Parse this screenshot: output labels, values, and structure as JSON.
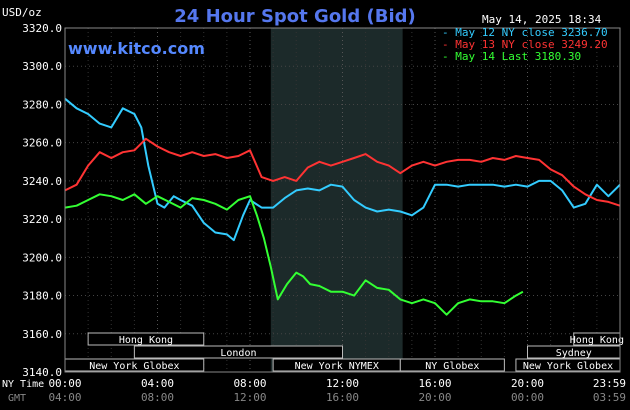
{
  "header": {
    "unit_label": "USD/oz",
    "title": "24 Hour Spot Gold (Bid)",
    "timestamp": "May 14, 2025 18:34",
    "website": "www.kitco.com"
  },
  "legend": [
    {
      "text": "May 12 NY close 3236.70",
      "color": "#33ccff"
    },
    {
      "text": "May 13 NY close 3249.20",
      "color": "#ff3333"
    },
    {
      "text": "May 14 Last 3180.30",
      "color": "#33ff33"
    }
  ],
  "x_axis": {
    "row1_label": "NY Time",
    "row2_label": "GMT",
    "ny_ticks": [
      "00:00",
      "04:00",
      "08:00",
      "12:00",
      "16:00",
      "20:00",
      "23:59"
    ],
    "gmt_ticks": [
      "04:00",
      "08:00",
      "12:00",
      "16:00",
      "20:00",
      "00:00",
      "03:59"
    ]
  },
  "markets": [
    {
      "name": "Hong Kong",
      "start": 1.0,
      "end": 6.0,
      "row": 0
    },
    {
      "name": "Hong Kong",
      "start": 22.0,
      "end": 26.0,
      "row": 0
    },
    {
      "name": "London",
      "start": 3.0,
      "end": 12.0,
      "row": 1
    },
    {
      "name": "Sydney",
      "start": 20.0,
      "end": 26.0,
      "row": 1
    },
    {
      "name": "New York Globex",
      "start": 0.0,
      "end": 6.0,
      "row": 2
    },
    {
      "name": "New York NYMEX",
      "start": 9.0,
      "end": 14.5,
      "row": 2
    },
    {
      "name": "NY Globex",
      "start": 14.5,
      "end": 19.0,
      "row": 2
    },
    {
      "name": "New York Globex",
      "start": 19.5,
      "end": 26.0,
      "row": 2
    }
  ],
  "chart_data": {
    "type": "line",
    "title": "24 Hour Spot Gold (Bid)",
    "ylabel": "USD/oz",
    "xlabel": "NY Time",
    "ylim": [
      3140,
      3320
    ],
    "xlim": [
      0,
      24
    ],
    "y_ticks": [
      3140,
      3160,
      3180,
      3200,
      3220,
      3240,
      3260,
      3280,
      3300,
      3320
    ],
    "grid": true,
    "highlight_range": [
      8.9,
      14.6
    ],
    "legend_position": "top-right",
    "series": [
      {
        "name": "May 12 NY close 3236.70",
        "color": "#33ccff",
        "x": [
          0,
          0.5,
          1.0,
          1.5,
          2.0,
          2.5,
          3.0,
          3.3,
          3.6,
          4.0,
          4.3,
          4.7,
          5.0,
          5.5,
          6.0,
          6.5,
          7.0,
          7.3,
          7.7,
          8.0,
          8.5,
          9.0,
          9.5,
          10.0,
          10.5,
          11.0,
          11.5,
          12.0,
          12.5,
          13.0,
          13.5,
          14.0,
          14.5,
          15.0,
          15.5,
          16.0,
          16.5,
          17.0,
          17.5,
          18.0,
          18.5,
          19.0,
          19.5,
          20.0,
          20.5,
          21.0,
          21.5,
          22.0,
          22.5,
          23.0,
          23.5,
          24.0
        ],
        "y": [
          3283,
          3278,
          3275,
          3270,
          3268,
          3278,
          3275,
          3268,
          3248,
          3228,
          3226,
          3232,
          3230,
          3227,
          3218,
          3213,
          3212,
          3209,
          3222,
          3230,
          3226,
          3226,
          3231,
          3235,
          3236,
          3235,
          3238,
          3237,
          3230,
          3226,
          3224,
          3225,
          3224,
          3222,
          3226,
          3238,
          3238,
          3237,
          3238,
          3238,
          3238,
          3237,
          3238,
          3237,
          3240,
          3240,
          3235,
          3226,
          3228,
          3238,
          3232,
          3238
        ]
      },
      {
        "name": "May 13 NY close 3249.20",
        "color": "#ff3333",
        "x": [
          0,
          0.5,
          1.0,
          1.5,
          2.0,
          2.5,
          3.0,
          3.5,
          4.0,
          4.5,
          5.0,
          5.5,
          6.0,
          6.5,
          7.0,
          7.5,
          8.0,
          8.5,
          9.0,
          9.5,
          10.0,
          10.5,
          11.0,
          11.5,
          12.0,
          12.5,
          13.0,
          13.5,
          14.0,
          14.5,
          15.0,
          15.5,
          16.0,
          16.5,
          17.0,
          17.5,
          18.0,
          18.5,
          19.0,
          19.5,
          20.0,
          20.5,
          21.0,
          21.5,
          22.0,
          22.5,
          23.0,
          23.5,
          24.0
        ],
        "y": [
          3235,
          3238,
          3248,
          3255,
          3252,
          3255,
          3256,
          3262,
          3258,
          3255,
          3253,
          3255,
          3253,
          3254,
          3252,
          3253,
          3256,
          3242,
          3240,
          3242,
          3240,
          3247,
          3250,
          3248,
          3250,
          3252,
          3254,
          3250,
          3248,
          3244,
          3248,
          3250,
          3248,
          3250,
          3251,
          3251,
          3250,
          3252,
          3251,
          3253,
          3252,
          3251,
          3246,
          3243,
          3237,
          3233,
          3230,
          3229,
          3227
        ]
      },
      {
        "name": "May 14 Last 3180.30",
        "color": "#33ff33",
        "x": [
          0,
          0.5,
          1.0,
          1.5,
          2.0,
          2.5,
          3.0,
          3.5,
          4.0,
          4.5,
          5.0,
          5.5,
          6.0,
          6.5,
          7.0,
          7.5,
          8.0,
          8.3,
          8.6,
          8.9,
          9.2,
          9.6,
          10.0,
          10.3,
          10.6,
          11.0,
          11.5,
          12.0,
          12.5,
          13.0,
          13.5,
          14.0,
          14.5,
          15.0,
          15.5,
          16.0,
          16.5,
          17.0,
          17.5,
          18.0,
          18.5,
          19.0,
          19.5,
          19.8
        ],
        "y": [
          3226,
          3227,
          3230,
          3233,
          3232,
          3230,
          3233,
          3228,
          3232,
          3229,
          3226,
          3231,
          3230,
          3228,
          3225,
          3230,
          3232,
          3222,
          3210,
          3195,
          3178,
          3186,
          3192,
          3190,
          3186,
          3185,
          3182,
          3182,
          3180,
          3188,
          3184,
          3183,
          3178,
          3176,
          3178,
          3176,
          3170,
          3176,
          3178,
          3177,
          3177,
          3176,
          3180,
          3182
        ]
      }
    ]
  }
}
